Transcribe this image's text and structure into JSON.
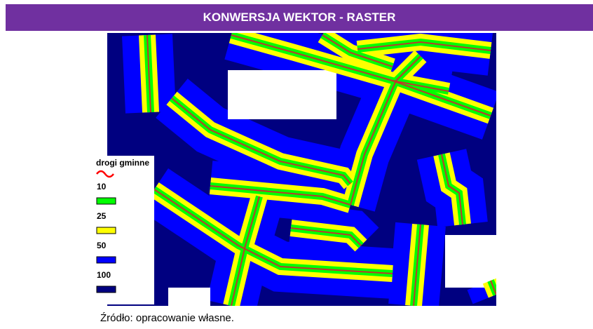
{
  "header": {
    "title": "KONWERSJA WEKTOR - RASTER"
  },
  "legend": {
    "title": "drogi gminne",
    "items": [
      {
        "label": "10",
        "color": "#00ff00"
      },
      {
        "label": "25",
        "color": "#ffff00"
      },
      {
        "label": "50",
        "color": "#0000ff"
      },
      {
        "label": "100",
        "color": "#000080"
      }
    ]
  },
  "source": "Źródło: opracowanie własne."
}
